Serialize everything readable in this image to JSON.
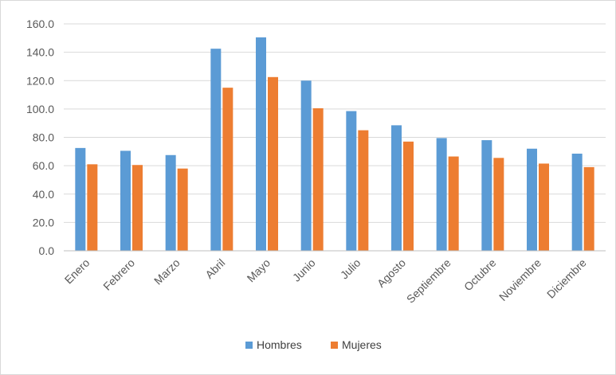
{
  "chart_data": {
    "type": "bar",
    "categories": [
      "Enero",
      "Febrero",
      "Marzo",
      "Abril",
      "Mayo",
      "Junio",
      "Julio",
      "Agosto",
      "Septiembre",
      "Octubre",
      "Noviembre",
      "Diciembre"
    ],
    "series": [
      {
        "name": "Hombres",
        "color": "#5b9bd5",
        "values": [
          72.5,
          70.5,
          67.5,
          142.5,
          150.5,
          120.0,
          98.5,
          88.5,
          79.5,
          78.0,
          72.0,
          68.5
        ]
      },
      {
        "name": "Mujeres",
        "color": "#ed7d31",
        "values": [
          61.0,
          60.5,
          58.0,
          115.0,
          122.5,
          100.5,
          85.0,
          77.0,
          66.5,
          65.5,
          61.5,
          59.0
        ]
      }
    ],
    "yticks": [
      "0.0",
      "20.0",
      "40.0",
      "60.0",
      "80.0",
      "100.0",
      "120.0",
      "140.0",
      "160.0"
    ],
    "ylim": [
      0,
      160
    ],
    "grid": true,
    "legend": "bottom",
    "title": "",
    "xlabel": "",
    "ylabel": ""
  }
}
